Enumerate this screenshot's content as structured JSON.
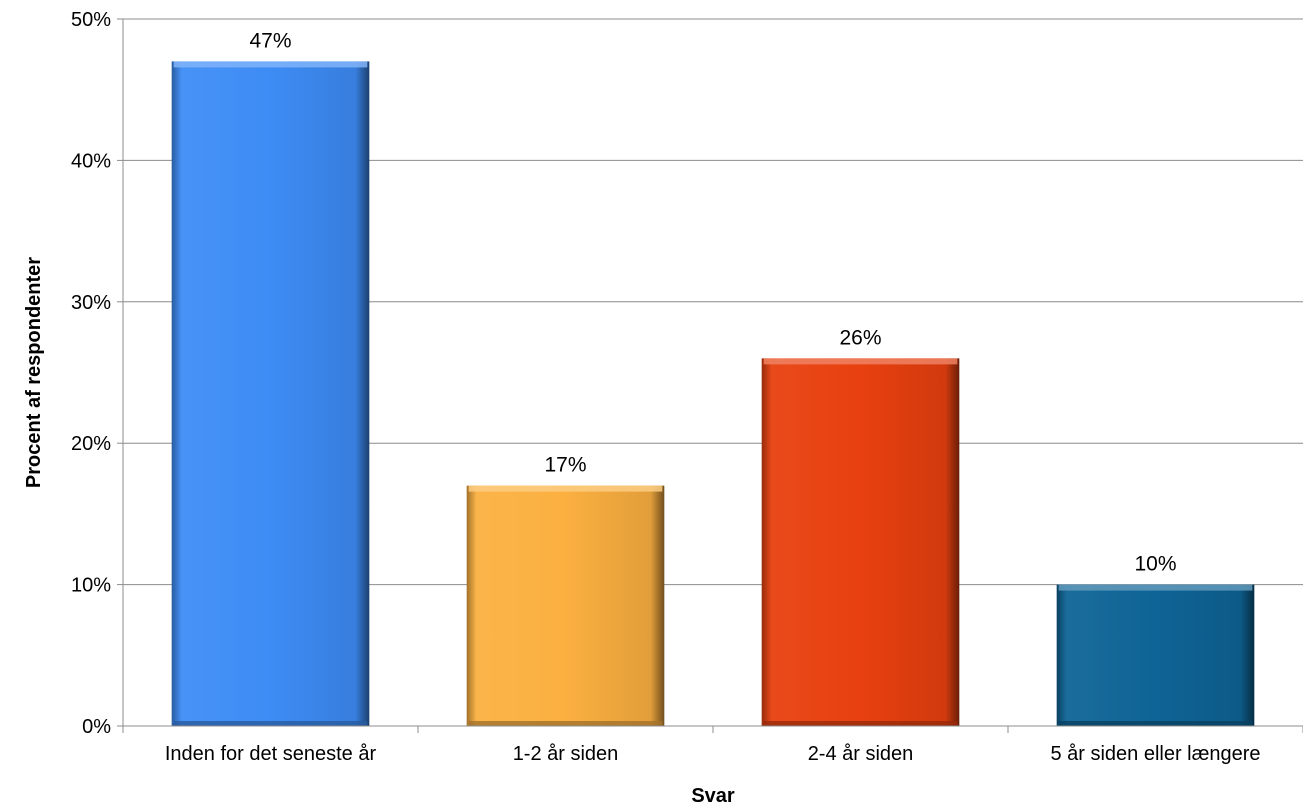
{
  "chart_data": {
    "type": "bar",
    "title": "",
    "xlabel": "Svar",
    "ylabel": "Procent af respondenter",
    "categories": [
      "Inden for det seneste år",
      "1-2 år siden",
      "2-4 år siden",
      "5 år siden eller længere"
    ],
    "values": [
      47,
      17,
      26,
      10
    ],
    "value_labels": [
      "47%",
      "17%",
      "26%",
      "10%"
    ],
    "ylim": [
      0,
      50
    ],
    "yticks": [
      0,
      10,
      20,
      30,
      40,
      50
    ],
    "ytick_labels": [
      "0%",
      "10%",
      "20%",
      "30%",
      "40%",
      "50%"
    ],
    "grid": true,
    "legend": "none",
    "colors": [
      "#3d8cf5",
      "#fbb040",
      "#e8400f",
      "#0e6496"
    ]
  }
}
